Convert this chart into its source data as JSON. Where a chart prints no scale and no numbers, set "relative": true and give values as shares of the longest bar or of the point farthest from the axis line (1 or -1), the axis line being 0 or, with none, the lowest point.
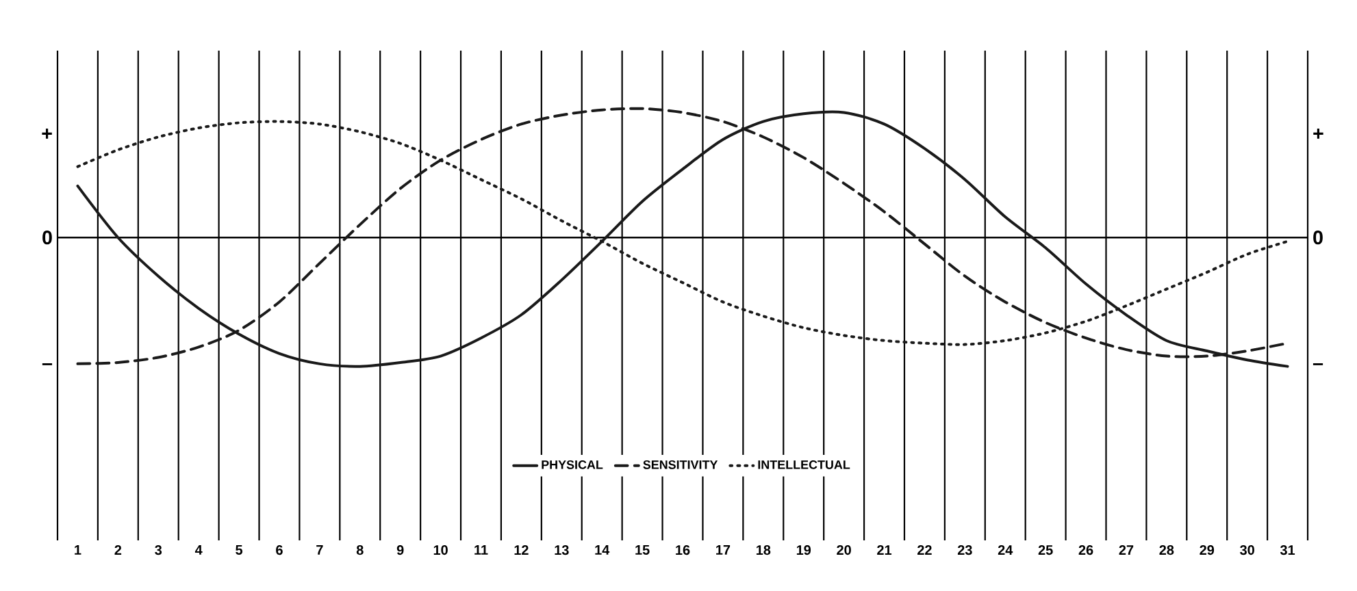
{
  "chart_data": {
    "type": "line",
    "categories": [
      "1",
      "2",
      "3",
      "4",
      "5",
      "6",
      "7",
      "8",
      "9",
      "10",
      "11",
      "12",
      "13",
      "14",
      "15",
      "16",
      "17",
      "18",
      "19",
      "20",
      "21",
      "22",
      "23",
      "24",
      "25",
      "26",
      "27",
      "28",
      "29",
      "30",
      "31"
    ],
    "series": [
      {
        "name": "PHYSICAL",
        "color": "#1a1a1a",
        "line_style": "solid",
        "values": [
          0.4,
          0.0,
          -0.3,
          -0.55,
          -0.75,
          -0.9,
          -0.98,
          -1.0,
          -0.97,
          -0.92,
          -0.78,
          -0.6,
          -0.33,
          -0.03,
          0.28,
          0.53,
          0.76,
          0.9,
          0.96,
          0.97,
          0.88,
          0.69,
          0.45,
          0.16,
          -0.08,
          -0.36,
          -0.6,
          -0.8,
          -0.88,
          -0.95,
          -1.0
        ]
      },
      {
        "name": "SENSITIVITY",
        "color": "#1a1a1a",
        "line_style": "dashed",
        "values": [
          -0.98,
          -0.97,
          -0.93,
          -0.85,
          -0.72,
          -0.5,
          -0.2,
          0.1,
          0.38,
          0.6,
          0.76,
          0.88,
          0.95,
          0.99,
          1.0,
          0.97,
          0.9,
          0.78,
          0.62,
          0.42,
          0.2,
          -0.05,
          -0.3,
          -0.5,
          -0.66,
          -0.78,
          -0.87,
          -0.92,
          -0.92,
          -0.88,
          -0.82
        ]
      },
      {
        "name": "INTELLECTUAL",
        "color": "#1a1a1a",
        "line_style": "dotted",
        "values": [
          0.55,
          0.68,
          0.78,
          0.85,
          0.89,
          0.9,
          0.88,
          0.82,
          0.73,
          0.6,
          0.45,
          0.3,
          0.13,
          -0.03,
          -0.2,
          -0.35,
          -0.5,
          -0.61,
          -0.7,
          -0.76,
          -0.8,
          -0.82,
          -0.83,
          -0.8,
          -0.74,
          -0.65,
          -0.53,
          -0.4,
          -0.27,
          -0.13,
          -0.03
        ]
      }
    ],
    "relative": true,
    "annotations": [
      "+",
      "0",
      "–",
      "+",
      "0",
      "–"
    ],
    "grid": "x",
    "legend": "bottom",
    "marker": "none"
  }
}
